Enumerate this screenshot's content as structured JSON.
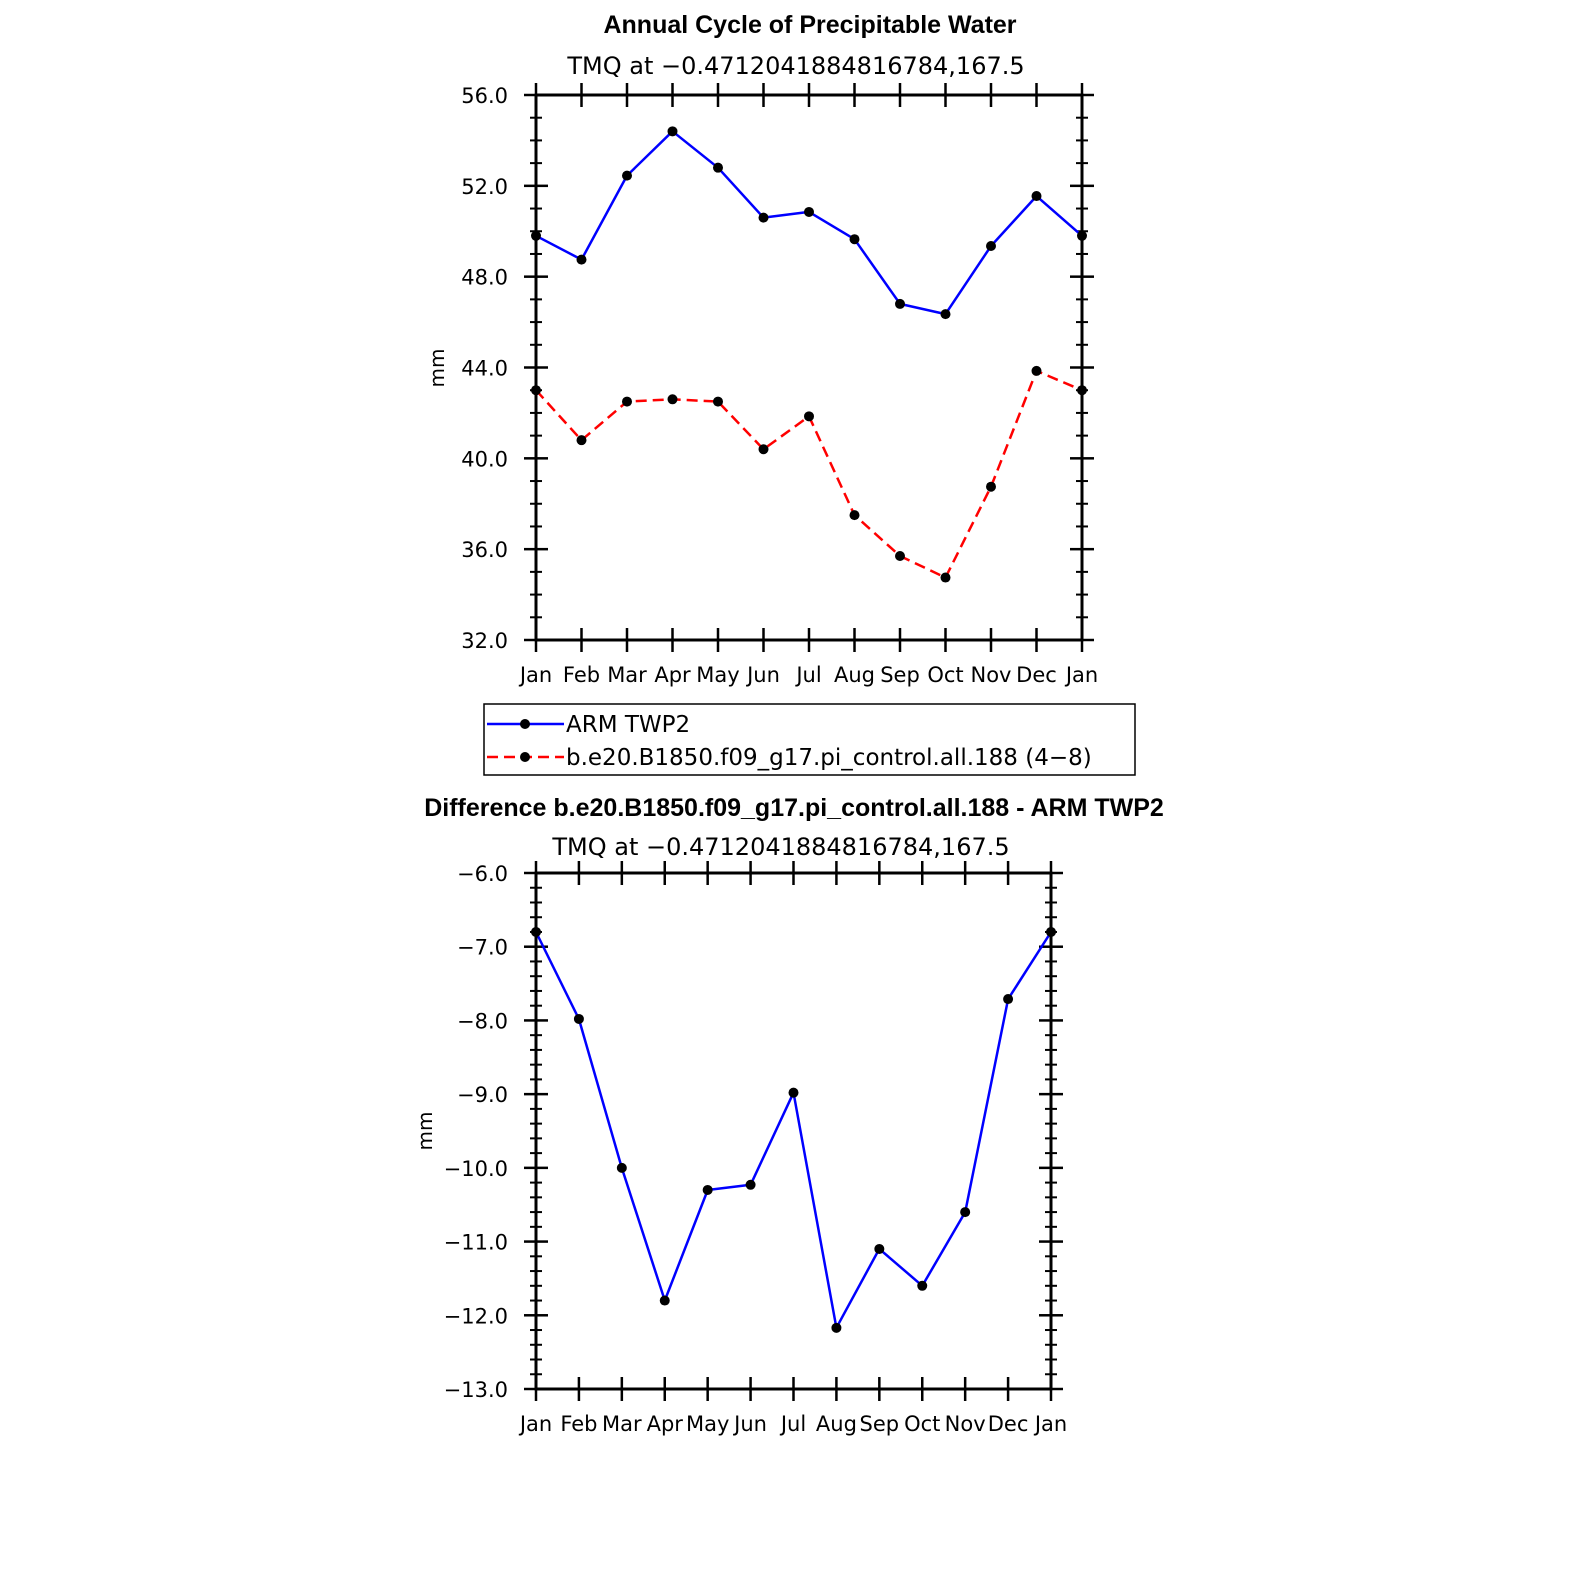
{
  "chart_data": [
    {
      "type": "line",
      "title": "Annual Cycle of Precipitable Water",
      "subtitle": "TMQ at −0.4712041884816784,167.5",
      "ylabel": "mm",
      "xlabel": "",
      "ylim": [
        32.0,
        56.0
      ],
      "yticks": [
        "32.0",
        "36.0",
        "40.0",
        "44.0",
        "48.0",
        "52.0",
        "56.0"
      ],
      "categories": [
        "Jan",
        "Feb",
        "Mar",
        "Apr",
        "May",
        "Jun",
        "Jul",
        "Aug",
        "Sep",
        "Oct",
        "Nov",
        "Dec",
        "Jan"
      ],
      "series": [
        {
          "name": "ARM TWP2",
          "color": "#0000ff",
          "style": "solid",
          "values": [
            49.8,
            48.75,
            52.45,
            54.4,
            52.8,
            50.6,
            50.85,
            49.65,
            46.8,
            46.35,
            49.35,
            51.55,
            49.8
          ]
        },
        {
          "name": "b.e20.B1850.f09_g17.pi_control.all.188 (4−8)",
          "color": "#ff0000",
          "style": "dashed",
          "values": [
            43.0,
            40.8,
            42.5,
            42.6,
            42.5,
            40.4,
            41.85,
            37.5,
            35.7,
            34.75,
            38.75,
            43.85,
            43.0
          ]
        }
      ],
      "legend_position": "below"
    },
    {
      "type": "line",
      "title": "Difference b.e20.B1850.f09_g17.pi_control.all.188 - ARM TWP2",
      "subtitle": "TMQ at −0.4712041884816784,167.5",
      "ylabel": "mm",
      "xlabel": "",
      "ylim": [
        -13.0,
        -6.0
      ],
      "yticks": [
        "−13.0",
        "−12.0",
        "−11.0",
        "−10.0",
        "−9.0",
        "−8.0",
        "−7.0",
        "−6.0"
      ],
      "categories": [
        "Jan",
        "Feb",
        "Mar",
        "Apr",
        "May",
        "Jun",
        "Jul",
        "Aug",
        "Sep",
        "Oct",
        "Nov",
        "Dec",
        "Jan"
      ],
      "series": [
        {
          "color": "#0000ff",
          "style": "solid",
          "values": [
            -6.8,
            -7.98,
            -10.0,
            -11.8,
            -10.3,
            -10.23,
            -8.98,
            -12.17,
            -11.1,
            -11.6,
            -10.6,
            -7.71,
            -6.8
          ]
        }
      ]
    }
  ]
}
